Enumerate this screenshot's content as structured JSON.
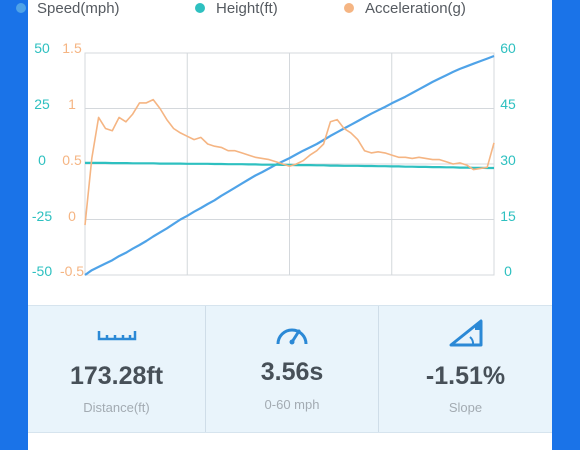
{
  "legend": [
    {
      "label": "Speed(mph)",
      "color": "#4fa3e8"
    },
    {
      "label": "Height(ft)",
      "color": "#2ec0c0"
    },
    {
      "label": "Acceleration(g)",
      "color": "#f5b583"
    }
  ],
  "axes": {
    "left_outer": {
      "ticks": [
        "50",
        "25",
        "0",
        "-25",
        "-50"
      ],
      "color": "#2ec0c0",
      "range": [
        -50,
        50
      ],
      "series": "Height(ft)"
    },
    "left_inner": {
      "ticks": [
        "1.5",
        "1",
        "0.5",
        "0",
        "-0.5"
      ],
      "color": "#f5b583",
      "range": [
        -0.5,
        1.5
      ],
      "series": "Acceleration(g)"
    },
    "right": {
      "ticks": [
        "60",
        "45",
        "30",
        "15",
        "0"
      ],
      "color": "#2ec0c0",
      "range": [
        0,
        60
      ],
      "series": "Speed(mph)"
    }
  },
  "chart_data": {
    "type": "line",
    "x": [
      0,
      1,
      2,
      3,
      4,
      5,
      6,
      7,
      8,
      9,
      10,
      11,
      12,
      13,
      14,
      15,
      16,
      17,
      18,
      19,
      20,
      21,
      22,
      23,
      24,
      25,
      26,
      27,
      28,
      29,
      30,
      31,
      32,
      33,
      34,
      35,
      36,
      37,
      38,
      39,
      40,
      41,
      42,
      43,
      44,
      45,
      46,
      47,
      48,
      49,
      50,
      51,
      52,
      53,
      54,
      55,
      56,
      57,
      58,
      59,
      60
    ],
    "series": [
      {
        "name": "Speed(mph)",
        "axis": "right",
        "color": "#4fa3e8",
        "values": [
          0,
          1.3,
          2.2,
          3.1,
          4.0,
          5.1,
          6.0,
          7.1,
          8.1,
          9.2,
          10.4,
          11.5,
          12.6,
          13.8,
          15.0,
          16.0,
          17.1,
          18.1,
          19.2,
          20.2,
          21.4,
          22.5,
          23.6,
          24.7,
          25.8,
          26.9,
          27.8,
          28.8,
          29.8,
          30.7,
          31.6,
          32.6,
          33.6,
          34.5,
          35.4,
          36.5,
          37.6,
          38.6,
          39.6,
          40.6,
          41.6,
          42.6,
          43.6,
          44.5,
          45.4,
          46.4,
          47.3,
          48.2,
          49.2,
          50.2,
          51.2,
          52.2,
          53.1,
          54.0,
          54.9,
          55.7,
          56.4,
          57.1,
          57.8,
          58.5,
          59.2
        ]
      },
      {
        "name": "Height(ft)",
        "axis": "left_outer",
        "color": "#2ec0c0",
        "values": [
          0.5,
          0.5,
          0.5,
          0.5,
          0.4,
          0.4,
          0.4,
          0.3,
          0.3,
          0.3,
          0.3,
          0.2,
          0.2,
          0.2,
          0.2,
          0.1,
          0.1,
          0.1,
          0.1,
          0.0,
          0.0,
          -0.1,
          -0.1,
          -0.1,
          -0.2,
          -0.2,
          -0.3,
          -0.3,
          -0.3,
          -0.4,
          -0.4,
          -0.5,
          -0.5,
          -0.5,
          -0.6,
          -0.6,
          -0.7,
          -0.7,
          -0.8,
          -0.8,
          -0.8,
          -0.9,
          -0.9,
          -1.0,
          -1.0,
          -1.1,
          -1.1,
          -1.2,
          -1.2,
          -1.3,
          -1.3,
          -1.4,
          -1.4,
          -1.5,
          -1.5,
          -1.6,
          -1.6,
          -1.7,
          -1.7,
          -1.8,
          -1.8
        ]
      },
      {
        "name": "Acceleration(g)",
        "axis": "left_inner",
        "color": "#f5b583",
        "values": [
          -0.05,
          0.55,
          0.92,
          0.82,
          0.8,
          0.92,
          0.88,
          0.95,
          1.05,
          1.05,
          1.08,
          1.0,
          0.9,
          0.82,
          0.78,
          0.75,
          0.72,
          0.74,
          0.68,
          0.66,
          0.65,
          0.62,
          0.62,
          0.6,
          0.58,
          0.56,
          0.55,
          0.54,
          0.52,
          0.5,
          0.48,
          0.5,
          0.53,
          0.58,
          0.62,
          0.68,
          0.88,
          0.9,
          0.82,
          0.78,
          0.72,
          0.62,
          0.6,
          0.61,
          0.6,
          0.58,
          0.56,
          0.56,
          0.55,
          0.56,
          0.55,
          0.54,
          0.54,
          0.52,
          0.5,
          0.51,
          0.49,
          0.45,
          0.46,
          0.47,
          0.69
        ]
      }
    ]
  },
  "stats": [
    {
      "icon": "ruler-icon",
      "value": "173.28ft",
      "label": "Distance(ft)"
    },
    {
      "icon": "speedometer-icon",
      "value": "3.56s",
      "label": "0-60 mph"
    },
    {
      "icon": "slope-icon",
      "value": "-1.51%",
      "label": "Slope"
    }
  ]
}
